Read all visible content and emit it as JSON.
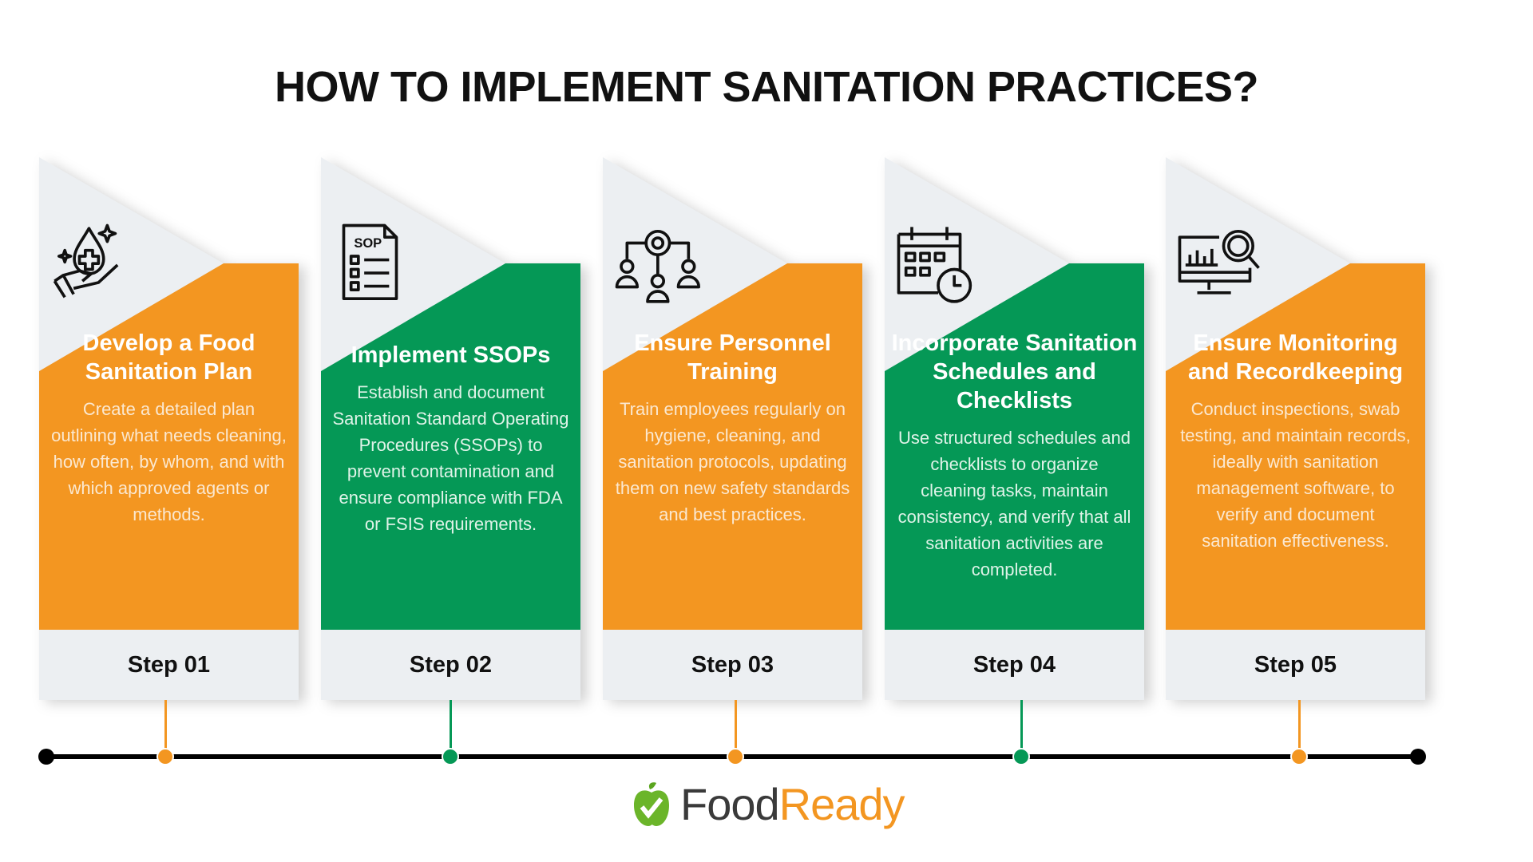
{
  "title": "HOW TO IMPLEMENT SANITATION PRACTICES?",
  "colors": {
    "orange": "#F39621",
    "green": "#059856",
    "gray": "#ECEFF2"
  },
  "steps": [
    {
      "icon": "hand-drop-cross-icon",
      "color": "orange",
      "title": "Develop a Food Sanitation Plan",
      "body": "Create a detailed plan outlining what needs cleaning, how often, by whom, and with which approved agents or methods.",
      "step": "Step 01"
    },
    {
      "icon": "sop-document-icon",
      "icon_text": "SOP",
      "color": "green",
      "title": "Implement SSOPs",
      "body": "Establish and document Sanitation Standard Operating Procedures (SSOPs) to prevent contamination and ensure compliance with FDA or FSIS requirements.",
      "step": "Step 02"
    },
    {
      "icon": "team-gear-icon",
      "color": "orange",
      "title": "Ensure Personnel Training",
      "body": "Train employees regularly on hygiene, cleaning, and sanitation protocols, updating them on new safety standards and best practices.",
      "step": "Step 03"
    },
    {
      "icon": "calendar-clock-icon",
      "color": "green",
      "title": "Incorporate Sanitation Schedules and Checklists",
      "body": "Use structured schedules and checklists to organize cleaning tasks, maintain consistency, and verify that all sanitation activities are completed.",
      "step": "Step 04"
    },
    {
      "icon": "monitor-magnifier-icon",
      "color": "orange",
      "title": "Ensure Monitoring and Recordkeeping",
      "body": "Conduct inspections, swab testing, and maintain records, ideally with sanitation management software, to verify and document sanitation effectiveness.",
      "step": "Step 05"
    }
  ],
  "logo": {
    "part1": "Food",
    "part2": "Ready"
  }
}
